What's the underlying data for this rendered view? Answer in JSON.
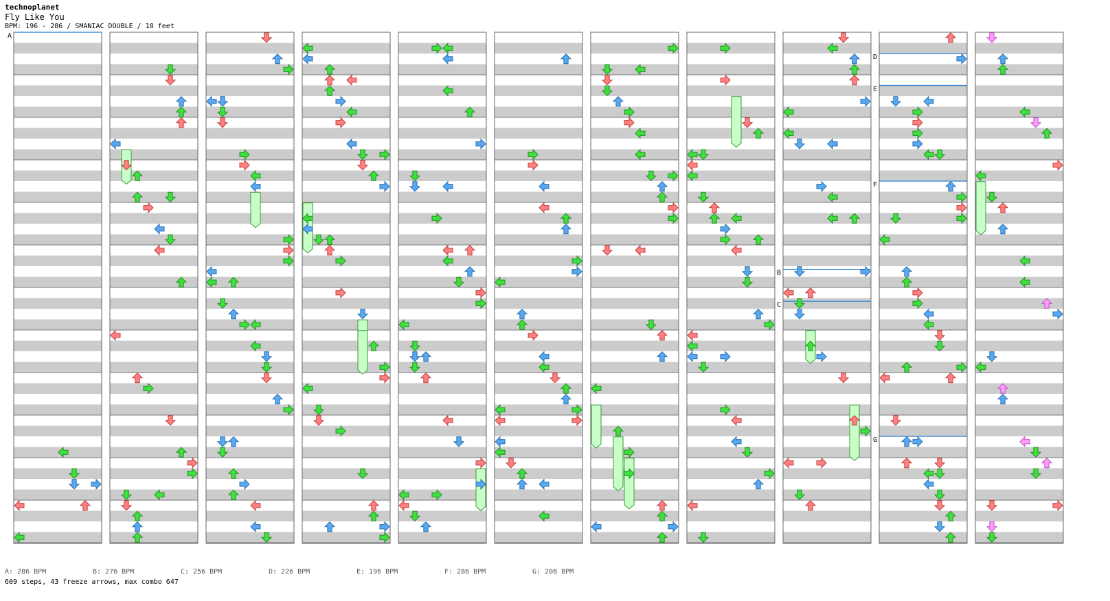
{
  "header": {
    "artist": "technoplanet",
    "title": "Fly Like You",
    "meta": "BPM: 196 - 286 / SMANIAC DOUBLE / 18 feet"
  },
  "bpm_legend": [
    {
      "label": "A: 286 BPM"
    },
    {
      "label": "B: 276 BPM"
    },
    {
      "label": "C: 256 BPM"
    },
    {
      "label": "D: 226 BPM"
    },
    {
      "label": "E: 196 BPM"
    },
    {
      "label": "F: 286 BPM"
    },
    {
      "label": "G: 208 BPM"
    }
  ],
  "summary": "609 steps, 43 freeze arrows, max combo 647",
  "markers": [
    {
      "col": 0,
      "beat": 0,
      "label": "A"
    },
    {
      "col": 8,
      "beat": 22.3,
      "label": "B"
    },
    {
      "col": 8,
      "beat": 25.3,
      "label": "C"
    },
    {
      "col": 9,
      "beat": 2.0,
      "label": "D"
    },
    {
      "col": 9,
      "beat": 5.0,
      "label": "E"
    },
    {
      "col": 9,
      "beat": 14.0,
      "label": "F"
    },
    {
      "col": 9,
      "beat": 38.0,
      "label": "G"
    }
  ],
  "colors": {
    "red": "#ff8080",
    "blue": "#5aa8f0",
    "green": "#40e040",
    "pink": "#ff9cff",
    "freeze": "#c8ffc8",
    "band": "#cccccc",
    "marker": "#2a7fd4"
  }
}
